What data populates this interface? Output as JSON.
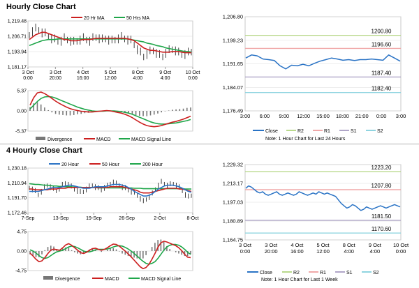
{
  "hourly": {
    "title": "Hourly Close Chart",
    "price": {
      "yticks": [
        "1,219.48",
        "1,206.71",
        "1,193.94",
        "1,181.17"
      ],
      "ylim": [
        1181.17,
        1219.48
      ],
      "xticks": [
        [
          "3 Oct",
          "0:00"
        ],
        [
          "3 Oct",
          "20:00"
        ],
        [
          "4 Oct",
          "16:00"
        ],
        [
          "5 Oct",
          "12:00"
        ],
        [
          "8 Oct",
          "4:00"
        ],
        [
          "9 Oct",
          "4:00"
        ],
        [
          "10 Oct",
          "0:00"
        ]
      ],
      "legend": [
        "20 Hr MA",
        "50 Hrs MA"
      ],
      "close": [
        1208,
        1211,
        1213,
        1212,
        1210,
        1209,
        1207,
        1205,
        1204,
        1203,
        1203,
        1205,
        1204,
        1203,
        1202,
        1203,
        1204,
        1205,
        1204,
        1203,
        1205,
        1206,
        1205,
        1204,
        1205,
        1204,
        1203,
        1204,
        1205,
        1206,
        1205,
        1204,
        1203,
        1200,
        1196,
        1193,
        1190,
        1192,
        1194,
        1195,
        1193,
        1191,
        1190,
        1193,
        1195,
        1196,
        1195,
        1193,
        1192,
        1192,
        1193,
        1194
      ],
      "ma20": [
        1204,
        1206,
        1208,
        1209,
        1210,
        1210,
        1209,
        1208,
        1207,
        1206,
        1205,
        1204,
        1204,
        1203,
        1203,
        1203,
        1203.5,
        1204,
        1204,
        1204,
        1204.5,
        1205,
        1205,
        1205,
        1205,
        1205,
        1205,
        1205,
        1205,
        1205,
        1205,
        1204.5,
        1204,
        1203,
        1201,
        1199,
        1197,
        1196,
        1195,
        1195,
        1194.5,
        1194,
        1193.5,
        1193.5,
        1193.5,
        1194,
        1194,
        1194,
        1193.5,
        1193,
        1193,
        1193
      ],
      "ma50": [
        1199,
        1200,
        1201,
        1202,
        1203,
        1203.5,
        1204,
        1204,
        1204,
        1204.5,
        1204.5,
        1204.5,
        1204.5,
        1204.5,
        1204.5,
        1204.5,
        1204.5,
        1204.5,
        1204.5,
        1204.5,
        1204.5,
        1204.5,
        1204.5,
        1204.5,
        1204.5,
        1204.5,
        1204.5,
        1204.5,
        1204.5,
        1204.5,
        1204.5,
        1204.5,
        1204,
        1203.5,
        1203,
        1202.5,
        1202,
        1201,
        1200.5,
        1200,
        1199,
        1198.5,
        1198,
        1197,
        1196.5,
        1196,
        1195.5,
        1195,
        1194.5,
        1194,
        1194,
        1193.5
      ]
    },
    "macd": {
      "yticks": [
        "5.37",
        "0.00",
        "-5.37"
      ],
      "ylim": [
        -5.37,
        5.37
      ],
      "legend": [
        "Divergence",
        "MACD",
        "MACD Signal Line"
      ],
      "macd": [
        1.5,
        3.5,
        4.8,
        5.0,
        4.6,
        4.0,
        3.3,
        2.6,
        2.0,
        1.5,
        1.0,
        0.6,
        0.3,
        0.1,
        -0.1,
        -0.2,
        -0.3,
        -0.3,
        -0.2,
        -0.1,
        0.0,
        0.1,
        0.0,
        -0.2,
        -0.4,
        -0.6,
        -0.9,
        -1.3,
        -1.8,
        -2.4,
        -3.0,
        -3.5,
        -3.9,
        -4.1,
        -4.2,
        -4.1,
        -3.9,
        -3.6,
        -3.3,
        -3.0,
        -2.8,
        -2.5,
        -2.2,
        -1.8,
        -1.4
      ],
      "signal": [
        0.5,
        1.5,
        2.5,
        3.3,
        3.7,
        3.8,
        3.7,
        3.4,
        3.0,
        2.6,
        2.2,
        1.8,
        1.4,
        1.0,
        0.7,
        0.4,
        0.2,
        0.0,
        -0.1,
        -0.1,
        -0.1,
        0.0,
        0.0,
        0.0,
        -0.1,
        -0.2,
        -0.4,
        -0.6,
        -0.9,
        -1.3,
        -1.7,
        -2.1,
        -2.5,
        -2.9,
        -3.2,
        -3.4,
        -3.5,
        -3.5,
        -3.4,
        -3.3,
        -3.2,
        -3.0,
        -2.8,
        -2.6,
        -2.3
      ]
    },
    "right": {
      "yticks": [
        "1,206.80",
        "1,199.23",
        "1,191.65",
        "1,184.07",
        "1,176.49"
      ],
      "ylim": [
        1176.49,
        1206.8
      ],
      "xticks": [
        "3:00",
        "6:00",
        "9:00",
        "12:00",
        "15:00",
        "18:00",
        "21:00",
        "0:00",
        "3:00"
      ],
      "levels": [
        {
          "label": "1200.80",
          "value": 1200.8,
          "color": "#b9d98c"
        },
        {
          "label": "1196.60",
          "value": 1196.6,
          "color": "#f0a8a8"
        },
        {
          "label": "1187.40",
          "value": 1187.4,
          "color": "#b0a6c8"
        },
        {
          "label": "1182.40",
          "value": 1182.4,
          "color": "#8fd4e0"
        }
      ],
      "close": [
        1193.5,
        1194.5,
        1194.2,
        1193.2,
        1193.0,
        1192.7,
        1191.0,
        1190.0,
        1191.2,
        1191.0,
        1191.5,
        1191.0,
        1191.8,
        1192.5,
        1193.0,
        1193.5,
        1193.2,
        1192.8,
        1193.0,
        1192.7,
        1193.0,
        1193.0,
        1193.2,
        1193.0,
        1192.8,
        1194.5,
        1193.5,
        1192.5
      ],
      "legend": [
        "Close",
        "R2",
        "R1",
        "S1",
        "S2"
      ],
      "note": "Note: 1 Hour Chart for Last 24 Hours"
    }
  },
  "four_hourly": {
    "title": "4 Hourly Close Chart",
    "price": {
      "yticks": [
        "1,230.18",
        "1,210.94",
        "1,191.70",
        "1,172.46"
      ],
      "ylim": [
        1172.46,
        1230.18
      ],
      "xticks": [
        "7-Sep",
        "13-Sep",
        "19-Sep",
        "26-Sep",
        "2-Oct",
        "8-Oct"
      ],
      "legend": [
        "20 Hour",
        "50 Hour",
        "200 Hour"
      ],
      "close": [
        1205,
        1203,
        1200,
        1196,
        1200,
        1205,
        1208,
        1206,
        1203,
        1201,
        1204,
        1208,
        1211,
        1209,
        1206,
        1203,
        1201,
        1199,
        1200,
        1203,
        1206,
        1208,
        1206,
        1204,
        1202,
        1205,
        1207,
        1210,
        1212,
        1210,
        1208,
        1206,
        1204,
        1202,
        1200,
        1198,
        1195,
        1191,
        1187,
        1190,
        1193,
        1197,
        1203,
        1208,
        1212,
        1210,
        1208,
        1209,
        1210,
        1208,
        1205,
        1201,
        1196,
        1193,
        1195
      ],
      "ma20": [
        1200,
        1200,
        1200,
        1200,
        1201,
        1202,
        1203,
        1204,
        1205,
        1205,
        1205,
        1206,
        1207,
        1208,
        1208,
        1207,
        1206,
        1205,
        1204,
        1204,
        1204,
        1205,
        1206,
        1206,
        1206,
        1206,
        1207,
        1208,
        1209,
        1209,
        1209,
        1208,
        1207,
        1205,
        1203,
        1200,
        1198,
        1196,
        1194,
        1194,
        1195,
        1197,
        1200,
        1203,
        1205,
        1207,
        1208,
        1208,
        1208,
        1207,
        1206,
        1204,
        1202,
        1200,
        1199
      ],
      "ma50": [
        1203,
        1203,
        1202,
        1202,
        1202,
        1202,
        1202,
        1203,
        1203,
        1203,
        1204,
        1204,
        1204,
        1205,
        1205,
        1205,
        1205,
        1205,
        1205,
        1205,
        1205,
        1205,
        1205,
        1205,
        1205,
        1205,
        1205,
        1206,
        1206,
        1206,
        1206,
        1206,
        1205,
        1204,
        1203,
        1202,
        1201,
        1199,
        1198,
        1198,
        1198,
        1199,
        1200,
        1201,
        1202,
        1203,
        1204,
        1204,
        1204,
        1204,
        1203,
        1203,
        1202,
        1201,
        1200
      ],
      "ma200": [
        1210,
        1209.5,
        1209,
        1209,
        1208.5,
        1208,
        1208,
        1207.5,
        1207,
        1207,
        1206.5,
        1206.5,
        1206,
        1206,
        1206,
        1205.5,
        1205.5,
        1205.5,
        1205,
        1205,
        1205,
        1205,
        1205,
        1204.5,
        1204.5,
        1204.5,
        1204.5,
        1204.5,
        1204.5,
        1204.5,
        1204.5,
        1204.5,
        1204.5,
        1204.5,
        1204.5,
        1204,
        1204,
        1204,
        1203.5,
        1203.5,
        1203.5,
        1203.5,
        1203.5,
        1203.5,
        1203.5,
        1203.5,
        1203.5,
        1203.5,
        1203.5,
        1203.5,
        1203.5,
        1203.5,
        1203,
        1203,
        1203
      ]
    },
    "macd": {
      "yticks": [
        "4.75",
        "0.00",
        "-4.75"
      ],
      "ylim": [
        -4.75,
        4.75
      ],
      "legend": [
        "Divergence",
        "MACD",
        "MACD Signal Line"
      ],
      "macd": [
        -0.5,
        -1.2,
        -2.0,
        -2.6,
        -2.4,
        -1.6,
        -0.6,
        0.2,
        0.5,
        0.3,
        0.2,
        0.8,
        1.5,
        1.8,
        1.4,
        0.8,
        0.2,
        -0.4,
        -0.6,
        -0.3,
        0.2,
        0.6,
        0.7,
        0.4,
        0.2,
        0.4,
        0.8,
        1.3,
        1.7,
        1.6,
        1.2,
        0.6,
        0.0,
        -0.7,
        -1.4,
        -2.2,
        -3.0,
        -3.8,
        -4.3,
        -4.0,
        -3.2,
        -2.0,
        -0.6,
        0.9,
        2.0,
        2.4,
        2.2,
        1.9,
        1.6,
        1.3,
        0.8,
        0.1,
        -0.8,
        -1.5,
        -1.6
      ],
      "signal": [
        0.3,
        0.0,
        -0.5,
        -1.1,
        -1.6,
        -1.8,
        -1.6,
        -1.1,
        -0.6,
        -0.2,
        0.0,
        0.2,
        0.6,
        1.0,
        1.2,
        1.1,
        0.8,
        0.4,
        0.0,
        -0.2,
        -0.2,
        0.0,
        0.3,
        0.4,
        0.4,
        0.4,
        0.5,
        0.7,
        1.0,
        1.2,
        1.3,
        1.2,
        0.9,
        0.5,
        0.0,
        -0.6,
        -1.2,
        -1.9,
        -2.5,
        -3.0,
        -3.2,
        -3.0,
        -2.6,
        -1.8,
        -0.8,
        0.2,
        1.0,
        1.4,
        1.6,
        1.6,
        1.4,
        1.0,
        0.4,
        -0.3,
        -0.8
      ]
    },
    "right": {
      "yticks": [
        "1,229.32",
        "1,213.17",
        "1,197.03",
        "1,180.89",
        "1,164.75"
      ],
      "ylim": [
        1164.75,
        1229.32
      ],
      "xticks": [
        [
          "3 Oct",
          "0:00"
        ],
        [
          "3 Oct",
          "20:00"
        ],
        [
          "4 Oct",
          "16:00"
        ],
        [
          "5 Oct",
          "12:00"
        ],
        [
          "8 Oct",
          "4:00"
        ],
        [
          "9 Oct",
          "4:00"
        ],
        [
          "10 Oct",
          "0:00"
        ]
      ],
      "levels": [
        {
          "label": "1223.20",
          "value": 1223.2,
          "color": "#b9d98c"
        },
        {
          "label": "1207.80",
          "value": 1207.8,
          "color": "#f0a8a8"
        },
        {
          "label": "1181.50",
          "value": 1181.5,
          "color": "#b0a6c8"
        },
        {
          "label": "1170.60",
          "value": 1170.6,
          "color": "#8fd4e0"
        }
      ],
      "close": [
        1209,
        1211,
        1210,
        1208,
        1206,
        1205,
        1206,
        1204,
        1203,
        1204,
        1205,
        1206,
        1204,
        1203,
        1204,
        1205,
        1204,
        1203,
        1204,
        1206,
        1205,
        1204,
        1203,
        1204,
        1205,
        1204,
        1206,
        1205,
        1204,
        1205,
        1204,
        1203,
        1202,
        1199,
        1196,
        1194,
        1192,
        1193,
        1195,
        1194,
        1192,
        1190,
        1191,
        1193,
        1192,
        1191,
        1192,
        1193,
        1194,
        1193,
        1192,
        1193,
        1194,
        1195,
        1194,
        1193
      ],
      "legend": [
        "Close",
        "R2",
        "R1",
        "S1",
        "S2"
      ],
      "note": "Note: 1 Hour Chart for Last 1 Week"
    }
  },
  "colors": {
    "red": "#cc1f1f",
    "green": "#1fa64a",
    "blue": "#2a73c5",
    "close": "#2a73c5",
    "black": "#111111",
    "gray": "#777777",
    "grid": "#dddddd"
  }
}
